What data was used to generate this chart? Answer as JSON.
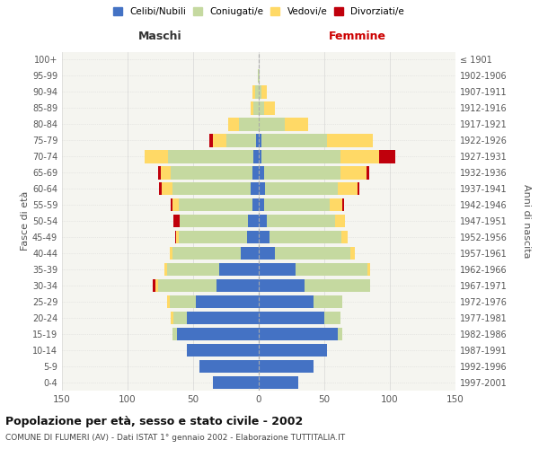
{
  "age_groups": [
    "0-4",
    "5-9",
    "10-14",
    "15-19",
    "20-24",
    "25-29",
    "30-34",
    "35-39",
    "40-44",
    "45-49",
    "50-54",
    "55-59",
    "60-64",
    "65-69",
    "70-74",
    "75-79",
    "80-84",
    "85-89",
    "90-94",
    "95-99",
    "100+"
  ],
  "birth_years": [
    "1997-2001",
    "1992-1996",
    "1987-1991",
    "1982-1986",
    "1977-1981",
    "1972-1976",
    "1967-1971",
    "1962-1966",
    "1957-1961",
    "1952-1956",
    "1947-1951",
    "1942-1946",
    "1937-1941",
    "1932-1936",
    "1927-1931",
    "1922-1926",
    "1917-1921",
    "1912-1916",
    "1907-1911",
    "1902-1906",
    "≤ 1901"
  ],
  "male": {
    "celibi": [
      35,
      45,
      55,
      62,
      55,
      48,
      32,
      30,
      14,
      9,
      8,
      5,
      6,
      5,
      4,
      2,
      0,
      0,
      0,
      0,
      0
    ],
    "coniugati": [
      0,
      0,
      0,
      4,
      10,
      20,
      45,
      40,
      52,
      52,
      52,
      56,
      60,
      62,
      65,
      23,
      15,
      4,
      3,
      1,
      0
    ],
    "vedovi": [
      0,
      0,
      0,
      0,
      2,
      2,
      2,
      2,
      2,
      2,
      0,
      5,
      8,
      8,
      18,
      10,
      8,
      2,
      2,
      0,
      0
    ],
    "divorziati": [
      0,
      0,
      0,
      0,
      0,
      0,
      2,
      0,
      0,
      1,
      5,
      1,
      2,
      2,
      0,
      3,
      0,
      0,
      0,
      0,
      0
    ]
  },
  "female": {
    "nubili": [
      30,
      42,
      52,
      60,
      50,
      42,
      35,
      28,
      12,
      8,
      6,
      4,
      5,
      4,
      2,
      2,
      0,
      0,
      0,
      0,
      0
    ],
    "coniugate": [
      0,
      0,
      0,
      4,
      12,
      22,
      50,
      55,
      58,
      55,
      52,
      50,
      55,
      58,
      60,
      50,
      20,
      4,
      2,
      1,
      0
    ],
    "vedove": [
      0,
      0,
      0,
      0,
      0,
      0,
      0,
      2,
      3,
      5,
      8,
      10,
      15,
      20,
      30,
      35,
      18,
      8,
      4,
      0,
      0
    ],
    "divorziate": [
      0,
      0,
      0,
      0,
      0,
      0,
      0,
      0,
      0,
      0,
      0,
      1,
      2,
      2,
      12,
      0,
      0,
      0,
      0,
      0,
      0
    ]
  },
  "colors": {
    "celibi_nubili": "#4472C4",
    "coniugati": "#C5D9A0",
    "vedovi": "#FFD966",
    "divorziati": "#C0000C"
  },
  "title": "Popolazione per età, sesso e stato civile - 2002",
  "subtitle": "COMUNE DI FLUMERI (AV) - Dati ISTAT 1° gennaio 2002 - Elaborazione TUTTITALIA.IT",
  "xlabel_left": "Maschi",
  "xlabel_right": "Femmine",
  "ylabel_left": "Fasce di età",
  "ylabel_right": "Anni di nascita",
  "xlim": 150,
  "legend_labels": [
    "Celibi/Nubili",
    "Coniugati/e",
    "Vedovi/e",
    "Divorziati/e"
  ],
  "bg_color": "#f5f5f0",
  "grid_color": "#cccccc",
  "text_color": "#555555"
}
